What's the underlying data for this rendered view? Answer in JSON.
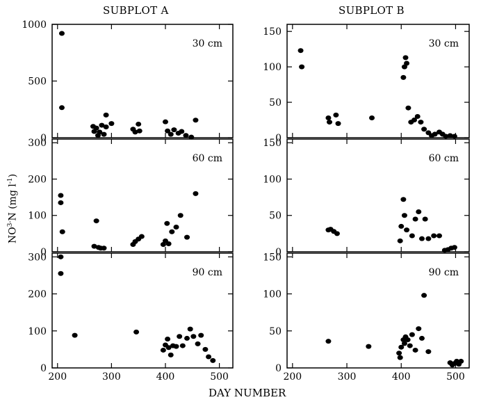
{
  "figure": {
    "col_titles": [
      "SUBPLOT A",
      "SUBPLOT B"
    ],
    "xlabel": "DAY NUMBER",
    "ylabel_main": "NO",
    "ylabel_sup": "3-",
    "ylabel_after": "N  (mg l",
    "ylabel_sup2": "-1",
    "ylabel_close": ")"
  },
  "chart_data": [
    {
      "type": "scatter",
      "subplot": "A",
      "depth": "30 cm",
      "xlim": [
        190,
        525
      ],
      "ylim": [
        0,
        1000
      ],
      "xticks": [
        200,
        300,
        400,
        500
      ],
      "yticks": [
        0,
        500,
        1000
      ],
      "points": [
        [
          208,
          920
        ],
        [
          208,
          265
        ],
        [
          266,
          100
        ],
        [
          268,
          55
        ],
        [
          272,
          85
        ],
        [
          275,
          20
        ],
        [
          278,
          50
        ],
        [
          282,
          110
        ],
        [
          286,
          30
        ],
        [
          290,
          95
        ],
        [
          290,
          200
        ],
        [
          300,
          125
        ],
        [
          340,
          75
        ],
        [
          344,
          50
        ],
        [
          350,
          120
        ],
        [
          352,
          60
        ],
        [
          400,
          140
        ],
        [
          404,
          60
        ],
        [
          410,
          30
        ],
        [
          416,
          70
        ],
        [
          424,
          40
        ],
        [
          430,
          55
        ],
        [
          438,
          20
        ],
        [
          448,
          5
        ],
        [
          456,
          155
        ]
      ]
    },
    {
      "type": "scatter",
      "subplot": "B",
      "depth": "30 cm",
      "xlim": [
        190,
        525
      ],
      "ylim": [
        0,
        160
      ],
      "xticks": [
        200,
        300,
        400,
        500
      ],
      "yticks": [
        0,
        50,
        100,
        150
      ],
      "points": [
        [
          215,
          123
        ],
        [
          217,
          100
        ],
        [
          266,
          28
        ],
        [
          268,
          22
        ],
        [
          280,
          32
        ],
        [
          284,
          20
        ],
        [
          346,
          28
        ],
        [
          404,
          85
        ],
        [
          406,
          100
        ],
        [
          408,
          113
        ],
        [
          410,
          105
        ],
        [
          413,
          42
        ],
        [
          418,
          22
        ],
        [
          424,
          25
        ],
        [
          430,
          30
        ],
        [
          436,
          22
        ],
        [
          442,
          12
        ],
        [
          450,
          7
        ],
        [
          456,
          3
        ],
        [
          462,
          5
        ],
        [
          470,
          8
        ],
        [
          476,
          5
        ],
        [
          482,
          2
        ],
        [
          490,
          3
        ],
        [
          498,
          2
        ]
      ]
    },
    {
      "type": "scatter",
      "subplot": "A",
      "depth": "60 cm",
      "xlim": [
        190,
        525
      ],
      "ylim": [
        0,
        310
      ],
      "xticks": [
        200,
        300,
        400,
        500
      ],
      "yticks": [
        0,
        100,
        200,
        300
      ],
      "points": [
        [
          206,
          155
        ],
        [
          206,
          135
        ],
        [
          209,
          55
        ],
        [
          268,
          15
        ],
        [
          272,
          85
        ],
        [
          276,
          12
        ],
        [
          280,
          10
        ],
        [
          286,
          10
        ],
        [
          340,
          20
        ],
        [
          344,
          28
        ],
        [
          350,
          35
        ],
        [
          356,
          42
        ],
        [
          396,
          20
        ],
        [
          400,
          30
        ],
        [
          403,
          78
        ],
        [
          406,
          22
        ],
        [
          412,
          55
        ],
        [
          420,
          68
        ],
        [
          428,
          100
        ],
        [
          440,
          40
        ],
        [
          456,
          160
        ]
      ]
    },
    {
      "type": "scatter",
      "subplot": "B",
      "depth": "60 cm",
      "xlim": [
        190,
        525
      ],
      "ylim": [
        0,
        155
      ],
      "xticks": [
        200,
        300,
        400,
        500
      ],
      "yticks": [
        0,
        50,
        100,
        150
      ],
      "points": [
        [
          266,
          30
        ],
        [
          270,
          31
        ],
        [
          276,
          28
        ],
        [
          282,
          25
        ],
        [
          398,
          15
        ],
        [
          400,
          35
        ],
        [
          404,
          72
        ],
        [
          406,
          50
        ],
        [
          410,
          30
        ],
        [
          420,
          22
        ],
        [
          426,
          45
        ],
        [
          432,
          55
        ],
        [
          438,
          18
        ],
        [
          444,
          45
        ],
        [
          450,
          18
        ],
        [
          460,
          22
        ],
        [
          470,
          22
        ],
        [
          480,
          2
        ],
        [
          486,
          3
        ],
        [
          492,
          5
        ],
        [
          498,
          6
        ]
      ]
    },
    {
      "type": "scatter",
      "subplot": "A",
      "depth": "90 cm",
      "xlim": [
        190,
        525
      ],
      "ylim": [
        0,
        310
      ],
      "xticks": [
        200,
        300,
        400,
        500
      ],
      "yticks": [
        0,
        100,
        200,
        300
      ],
      "points": [
        [
          206,
          300
        ],
        [
          206,
          255
        ],
        [
          232,
          88
        ],
        [
          346,
          97
        ],
        [
          396,
          48
        ],
        [
          400,
          62
        ],
        [
          404,
          78
        ],
        [
          406,
          55
        ],
        [
          410,
          35
        ],
        [
          414,
          60
        ],
        [
          420,
          58
        ],
        [
          426,
          85
        ],
        [
          432,
          60
        ],
        [
          440,
          80
        ],
        [
          446,
          105
        ],
        [
          452,
          85
        ],
        [
          460,
          65
        ],
        [
          466,
          88
        ],
        [
          474,
          50
        ],
        [
          480,
          30
        ],
        [
          488,
          20
        ]
      ]
    },
    {
      "type": "scatter",
      "subplot": "B",
      "depth": "90 cm",
      "xlim": [
        190,
        525
      ],
      "ylim": [
        0,
        155
      ],
      "xticks": [
        200,
        300,
        400,
        500
      ],
      "yticks": [
        0,
        50,
        100,
        150
      ],
      "points": [
        [
          266,
          36
        ],
        [
          340,
          29
        ],
        [
          396,
          20
        ],
        [
          398,
          14
        ],
        [
          400,
          28
        ],
        [
          404,
          38
        ],
        [
          406,
          33
        ],
        [
          408,
          42
        ],
        [
          412,
          38
        ],
        [
          416,
          30
        ],
        [
          420,
          45
        ],
        [
          426,
          24
        ],
        [
          432,
          53
        ],
        [
          438,
          40
        ],
        [
          442,
          98
        ],
        [
          450,
          22
        ],
        [
          490,
          7
        ],
        [
          494,
          4
        ],
        [
          498,
          6
        ],
        [
          502,
          9
        ],
        [
          506,
          5
        ],
        [
          510,
          9
        ]
      ]
    }
  ]
}
